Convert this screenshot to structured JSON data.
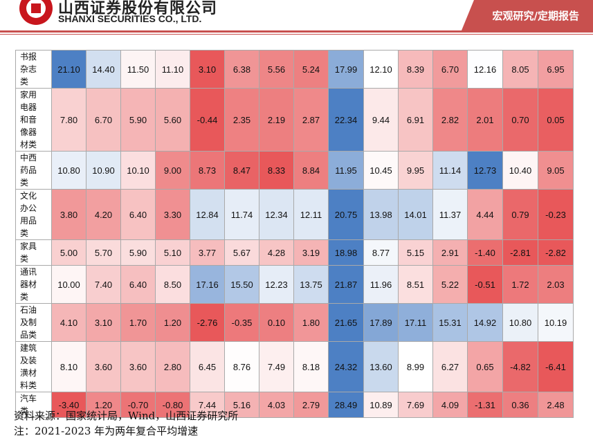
{
  "header": {
    "company_cn": "山西证券股份有限公司",
    "company_en": "SHANXI SECURITIES CO., LTD.",
    "report_type": "宏观研究/定期报告",
    "accent": "#c8504e"
  },
  "table": {
    "rows": [
      {
        "label": [
          "书报",
          "杂志",
          "类"
        ],
        "values": [
          "21.10",
          "14.40",
          "11.50",
          "11.10",
          "3.10",
          "6.38",
          "5.56",
          "5.24",
          "17.99",
          "12.10",
          "8.39",
          "6.70",
          "12.16",
          "8.05",
          "6.95"
        ]
      },
      {
        "label": [
          "家用",
          "电器",
          "和音",
          "像器",
          "材类"
        ],
        "values": [
          "7.80",
          "6.70",
          "5.90",
          "5.60",
          "-0.44",
          "2.35",
          "2.19",
          "2.87",
          "22.34",
          "9.44",
          "6.91",
          "2.82",
          "2.01",
          "0.70",
          "0.05"
        ]
      },
      {
        "label": [
          "中西",
          "药品",
          "类"
        ],
        "values": [
          "10.80",
          "10.90",
          "10.10",
          "9.00",
          "8.73",
          "8.47",
          "8.33",
          "8.84",
          "11.95",
          "10.45",
          "9.95",
          "11.14",
          "12.73",
          "10.40",
          "9.05"
        ]
      },
      {
        "label": [
          "文化",
          "办公",
          "用品",
          "类"
        ],
        "values": [
          "3.80",
          "4.20",
          "6.40",
          "3.30",
          "12.84",
          "11.74",
          "12.34",
          "12.11",
          "20.75",
          "13.98",
          "14.01",
          "11.37",
          "4.44",
          "0.79",
          "-0.23"
        ]
      },
      {
        "label": [
          "家具",
          "类"
        ],
        "values": [
          "5.00",
          "5.70",
          "5.90",
          "5.10",
          "3.77",
          "5.67",
          "4.28",
          "3.19",
          "18.98",
          "8.77",
          "5.15",
          "2.91",
          "-1.40",
          "-2.81",
          "-2.82"
        ]
      },
      {
        "label": [
          "通讯",
          "器材",
          "类"
        ],
        "values": [
          "10.00",
          "7.40",
          "6.40",
          "8.50",
          "17.16",
          "15.50",
          "12.23",
          "13.75",
          "21.87",
          "11.96",
          "8.51",
          "5.22",
          "-0.51",
          "1.72",
          "2.03"
        ]
      },
      {
        "label": [
          "石油",
          "及制",
          "品类"
        ],
        "values": [
          "4.10",
          "3.10",
          "1.70",
          "1.20",
          "-2.76",
          "-0.35",
          "0.10",
          "1.80",
          "21.65",
          "17.89",
          "17.11",
          "15.31",
          "14.92",
          "10.80",
          "10.19"
        ]
      },
      {
        "label": [
          "建筑",
          "及装",
          "潢材",
          "料类"
        ],
        "values": [
          "8.10",
          "3.60",
          "3.60",
          "2.80",
          "6.45",
          "8.76",
          "7.49",
          "8.18",
          "24.32",
          "13.60",
          "8.99",
          "6.27",
          "0.65",
          "-4.82",
          "-6.41"
        ]
      },
      {
        "label": [
          "汽车",
          "类"
        ],
        "values": [
          "-3.40",
          "1.20",
          "-0.70",
          "-0.80",
          "7.44",
          "5.16",
          "4.03",
          "2.79",
          "28.49",
          "10.89",
          "7.69",
          "4.09",
          "-1.31",
          "0.36",
          "2.48"
        ]
      }
    ]
  },
  "footer": {
    "source": "资料来源：国家统计局，Wind，山西证券研究所",
    "note": "注：2021-2023 年为两年复合平均增速"
  }
}
